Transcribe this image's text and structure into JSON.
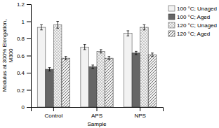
{
  "chart_data": {
    "type": "bar",
    "categories": [
      "Control",
      "APS",
      "NPS"
    ],
    "series": [
      {
        "name": "100 °C; Unaged",
        "color": "#f2f2f2",
        "values": [
          0.93,
          0.7,
          0.86
        ],
        "errors": [
          0.03,
          0.03,
          0.03
        ]
      },
      {
        "name": "100 °C; Aged",
        "color": "#666666",
        "values": [
          0.44,
          0.47,
          0.63
        ],
        "errors": [
          0.02,
          0.02,
          0.02
        ]
      },
      {
        "name": "120 °C; Unaged",
        "color": "#f2f2f2",
        "values": [
          0.96,
          0.65,
          0.93
        ],
        "errors": [
          0.04,
          0.02,
          0.03
        ]
      },
      {
        "name": "120 °C; Aged",
        "color": "#f2f2f2",
        "values": [
          0.57,
          0.57,
          0.61
        ],
        "errors": [
          0.02,
          0.02,
          0.02
        ]
      }
    ],
    "ylabel": "Modulus at 300% Elongation,\nM300",
    "xlabel": "Sample",
    "ylim": [
      0,
      1.2
    ],
    "yticks": [
      0,
      0.2,
      0.4,
      0.6,
      0.8,
      1,
      1.2
    ],
    "grid": false,
    "legend": "right"
  }
}
